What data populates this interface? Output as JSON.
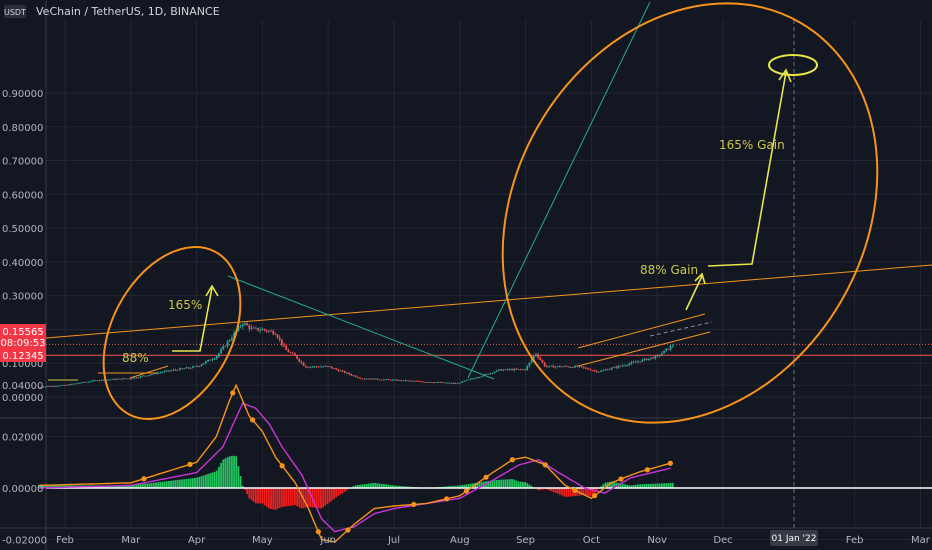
{
  "header": {
    "currency": "USDT",
    "title": "VeChain / TetherUS, 1D, BINANCE"
  },
  "colors": {
    "background": "#131722",
    "grid": "#242733",
    "up": "#26a69a",
    "down": "#ef5350",
    "annotation": "#f7931a",
    "text_annotation": "#c8c84a",
    "price_tag_up": "#089981",
    "price_tag_down": "#f23645",
    "macd_line": "#f7931a",
    "signal_line": "#c934d8"
  },
  "price_tags": {
    "current": "0.15565",
    "countdown": "08:09:53",
    "level": "0.12345"
  },
  "annotations": {
    "pct_88_left": "88%",
    "pct_165_left": "165%",
    "gain_88_right": "88% Gain",
    "gain_165_right": "165% Gain"
  },
  "cursor_date": "01 Jan '22",
  "chart_data": [
    {
      "type": "candlestick",
      "title": "VeChain / TetherUS, 1D, BINANCE",
      "y_tick_labels": [
        "0.00000",
        "0.10000",
        "0.20000",
        "0.30000",
        "0.40000",
        "0.50000",
        "0.60000",
        "0.70000",
        "0.80000",
        "0.90000"
      ],
      "y_ticks": [
        0,
        0.1,
        0.2,
        0.3,
        0.4,
        0.5,
        0.6,
        0.7,
        0.8,
        0.9
      ],
      "ylim": [
        -0.02,
        0.9
      ],
      "x_tick_labels": [
        "Feb",
        "Mar",
        "Apr",
        "May",
        "Jun",
        "Jul",
        "Aug",
        "Sep",
        "Oct",
        "Nov",
        "Dec",
        "Feb",
        "Mar"
      ],
      "x_tick_months": [
        1,
        2,
        3,
        4,
        5,
        6,
        7,
        8,
        9,
        10,
        11,
        13,
        14
      ],
      "month_anchors": [
        [
          0.6,
          0.03
        ],
        [
          1.0,
          0.035
        ],
        [
          1.5,
          0.05
        ],
        [
          2.0,
          0.055
        ],
        [
          2.5,
          0.075
        ],
        [
          3.0,
          0.09
        ],
        [
          3.3,
          0.12
        ],
        [
          3.5,
          0.17
        ],
        [
          3.7,
          0.22
        ],
        [
          3.85,
          0.2
        ],
        [
          4.0,
          0.2
        ],
        [
          4.2,
          0.19
        ],
        [
          4.35,
          0.14
        ],
        [
          4.5,
          0.12
        ],
        [
          4.65,
          0.09
        ],
        [
          5.0,
          0.09
        ],
        [
          5.5,
          0.055
        ],
        [
          6.0,
          0.05
        ],
        [
          6.5,
          0.045
        ],
        [
          6.95,
          0.04
        ],
        [
          7.2,
          0.055
        ],
        [
          7.6,
          0.08
        ],
        [
          8.0,
          0.082
        ],
        [
          8.15,
          0.13
        ],
        [
          8.3,
          0.09
        ],
        [
          8.8,
          0.09
        ],
        [
          9.1,
          0.075
        ],
        [
          9.5,
          0.095
        ],
        [
          10.0,
          0.12
        ],
        [
          10.25,
          0.155
        ]
      ],
      "current_price": 0.15565,
      "level_price": 0.12345
    },
    {
      "type": "line",
      "title": "MACD",
      "y_tick_labels": [
        "-0.02000",
        "0.00000",
        "0.02000",
        "0.04000"
      ],
      "y_ticks": [
        -0.02,
        0,
        0.02,
        0.04
      ],
      "ylim": [
        -0.025,
        0.043
      ],
      "macd_anchors": [
        [
          0.6,
          0.001
        ],
        [
          2.0,
          0.002
        ],
        [
          3.0,
          0.01
        ],
        [
          3.3,
          0.02
        ],
        [
          3.5,
          0.034
        ],
        [
          3.6,
          0.04
        ],
        [
          3.8,
          0.028
        ],
        [
          4.0,
          0.022
        ],
        [
          4.2,
          0.012
        ],
        [
          4.5,
          0.002
        ],
        [
          4.7,
          -0.008
        ],
        [
          4.9,
          -0.02
        ],
        [
          5.1,
          -0.021
        ],
        [
          5.4,
          -0.014
        ],
        [
          5.7,
          -0.008
        ],
        [
          6.0,
          -0.007
        ],
        [
          6.5,
          -0.006
        ],
        [
          7.0,
          -0.003
        ],
        [
          7.5,
          0.006
        ],
        [
          7.8,
          0.011
        ],
        [
          8.0,
          0.012
        ],
        [
          8.3,
          0.009
        ],
        [
          8.6,
          0.001
        ],
        [
          9.0,
          -0.004
        ],
        [
          9.3,
          0.002
        ],
        [
          9.7,
          0.006
        ],
        [
          10.25,
          0.01
        ]
      ],
      "signal_anchors": [
        [
          0.6,
          0.0
        ],
        [
          2.0,
          0.001
        ],
        [
          3.0,
          0.006
        ],
        [
          3.4,
          0.016
        ],
        [
          3.7,
          0.033
        ],
        [
          3.9,
          0.031
        ],
        [
          4.1,
          0.025
        ],
        [
          4.3,
          0.016
        ],
        [
          4.6,
          0.005
        ],
        [
          4.9,
          -0.012
        ],
        [
          5.1,
          -0.017
        ],
        [
          5.4,
          -0.015
        ],
        [
          5.7,
          -0.01
        ],
        [
          6.0,
          -0.008
        ],
        [
          6.5,
          -0.006
        ],
        [
          7.0,
          -0.004
        ],
        [
          7.5,
          0.003
        ],
        [
          7.9,
          0.009
        ],
        [
          8.2,
          0.011
        ],
        [
          8.5,
          0.006
        ],
        [
          8.9,
          0.0
        ],
        [
          9.2,
          -0.002
        ],
        [
          9.6,
          0.004
        ],
        [
          10.25,
          0.008
        ]
      ]
    }
  ]
}
